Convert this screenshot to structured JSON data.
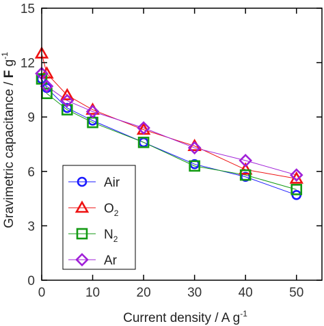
{
  "chart_data": {
    "type": "line",
    "title": "",
    "xlabel": "Current density / A g",
    "xlabel_sup": "-1",
    "ylabel_prefix": "Gravimetric capacitance / ",
    "ylabel_bold": "F",
    "ylabel_suffix": " g",
    "ylabel_sup": "-1",
    "xlim": [
      0,
      55
    ],
    "ylim": [
      0,
      15
    ],
    "xticks": [
      "0",
      "10",
      "20",
      "30",
      "40",
      "50"
    ],
    "yticks": [
      "0",
      "3",
      "6",
      "9",
      "12",
      "15"
    ],
    "x": [
      0,
      1,
      5,
      10,
      20,
      30,
      40,
      50
    ],
    "legend_position": "bottom-left",
    "series": [
      {
        "name": "Air",
        "name_base": "Air",
        "name_sub": "",
        "marker": "circle",
        "color": "#1a1aff",
        "values": [
          11.1,
          10.6,
          9.5,
          8.8,
          7.6,
          6.4,
          5.7,
          4.7
        ]
      },
      {
        "name": "O2",
        "name_base": "O",
        "name_sub": "2",
        "marker": "triangle",
        "color": "#ee1111",
        "values": [
          12.5,
          11.4,
          10.2,
          9.4,
          8.3,
          7.4,
          6.1,
          5.6
        ]
      },
      {
        "name": "N2",
        "name_base": "N",
        "name_sub": "2",
        "marker": "square",
        "color": "#139a13",
        "values": [
          11.1,
          10.3,
          9.4,
          8.7,
          7.6,
          6.3,
          5.8,
          5.0
        ]
      },
      {
        "name": "Ar",
        "name_base": "Ar",
        "name_sub": "",
        "marker": "diamond",
        "color": "#a020d8",
        "values": [
          11.4,
          10.7,
          9.9,
          9.3,
          8.4,
          7.3,
          6.6,
          5.8
        ]
      }
    ]
  }
}
